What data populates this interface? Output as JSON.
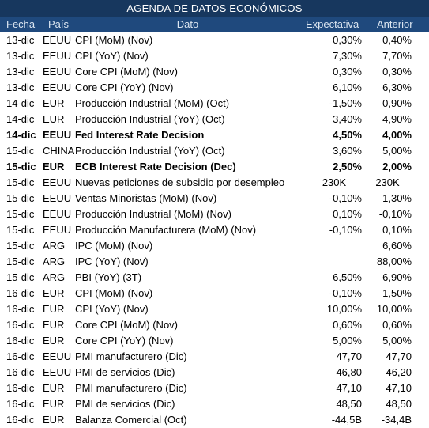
{
  "title": "AGENDA DE DATOS ECONÓMICOS",
  "columns": {
    "fecha": "Fecha",
    "pais": "País",
    "dato": "Dato",
    "expectativa": "Expectativa",
    "anterior": "Anterior"
  },
  "rows": [
    {
      "fecha": "13-dic",
      "pais": "EEUU",
      "dato": "CPI (MoM) (Nov)",
      "expectativa": "0,30%",
      "anterior": "0,40%",
      "bold": false
    },
    {
      "fecha": "13-dic",
      "pais": "EEUU",
      "dato": "CPI (YoY) (Nov)",
      "expectativa": "7,30%",
      "anterior": "7,70%",
      "bold": false
    },
    {
      "fecha": "13-dic",
      "pais": "EEUU",
      "dato": "Core CPI (MoM) (Nov)",
      "expectativa": "0,30%",
      "anterior": "0,30%",
      "bold": false
    },
    {
      "fecha": "13-dic",
      "pais": "EEUU",
      "dato": "Core CPI (YoY) (Nov)",
      "expectativa": "6,10%",
      "anterior": "6,30%",
      "bold": false
    },
    {
      "fecha": "14-dic",
      "pais": "EUR",
      "dato": "Producción Industrial (MoM) (Oct)",
      "expectativa": "-1,50%",
      "anterior": "0,90%",
      "bold": false
    },
    {
      "fecha": "14-dic",
      "pais": "EUR",
      "dato": "Producción Industrial (YoY) (Oct)",
      "expectativa": "3,40%",
      "anterior": "4,90%",
      "bold": false
    },
    {
      "fecha": "14-dic",
      "pais": "EEUU",
      "dato": "Fed Interest Rate Decision",
      "expectativa": "4,50%",
      "anterior": "4,00%",
      "bold": true
    },
    {
      "fecha": "15-dic",
      "pais": "CHINA",
      "dato": "Producción Industrial (YoY) (Oct)",
      "expectativa": "3,60%",
      "anterior": "5,00%",
      "bold": false
    },
    {
      "fecha": "15-dic",
      "pais": "EUR",
      "dato": "ECB Interest Rate Decision (Dec)",
      "expectativa": "2,50%",
      "anterior": "2,00%",
      "bold": true
    },
    {
      "fecha": "15-dic",
      "pais": "EEUU",
      "dato": "Nuevas peticiones de subsidio por desempleo",
      "expectativa": "230K",
      "anterior": "230K",
      "bold": false,
      "center": true
    },
    {
      "fecha": "15-dic",
      "pais": "EEUU",
      "dato": "Ventas Minoristas (MoM) (Nov)",
      "expectativa": "-0,10%",
      "anterior": "1,30%",
      "bold": false
    },
    {
      "fecha": "15-dic",
      "pais": "EEUU",
      "dato": "Producción Industrial (MoM) (Nov)",
      "expectativa": "0,10%",
      "anterior": "-0,10%",
      "bold": false
    },
    {
      "fecha": "15-dic",
      "pais": "EEUU",
      "dato": "Producción Manufacturera (MoM) (Nov)",
      "expectativa": "-0,10%",
      "anterior": "0,10%",
      "bold": false
    },
    {
      "fecha": "15-dic",
      "pais": "ARG",
      "dato": "IPC (MoM) (Nov)",
      "expectativa": "",
      "anterior": "6,60%",
      "bold": false
    },
    {
      "fecha": "15-dic",
      "pais": "ARG",
      "dato": "IPC (YoY) (Nov)",
      "expectativa": "",
      "anterior": "88,00%",
      "bold": false
    },
    {
      "fecha": "15-dic",
      "pais": "ARG",
      "dato": "PBI (YoY) (3T)",
      "expectativa": "6,50%",
      "anterior": "6,90%",
      "bold": false
    },
    {
      "fecha": "16-dic",
      "pais": "EUR",
      "dato": "CPI (MoM) (Nov)",
      "expectativa": "-0,10%",
      "anterior": "1,50%",
      "bold": false
    },
    {
      "fecha": "16-dic",
      "pais": "EUR",
      "dato": "CPI (YoY) (Nov)",
      "expectativa": "10,00%",
      "anterior": "10,00%",
      "bold": false
    },
    {
      "fecha": "16-dic",
      "pais": "EUR",
      "dato": "Core CPI (MoM) (Nov)",
      "expectativa": "0,60%",
      "anterior": "0,60%",
      "bold": false
    },
    {
      "fecha": "16-dic",
      "pais": "EUR",
      "dato": "Core CPI (YoY) (Nov)",
      "expectativa": "5,00%",
      "anterior": "5,00%",
      "bold": false
    },
    {
      "fecha": "16-dic",
      "pais": "EEUU",
      "dato": "PMI manufacturero (Dic)",
      "expectativa": "47,70",
      "anterior": "47,70",
      "bold": false
    },
    {
      "fecha": "16-dic",
      "pais": "EEUU",
      "dato": "PMI de servicios (Dic)",
      "expectativa": "46,80",
      "anterior": "46,20",
      "bold": false
    },
    {
      "fecha": "16-dic",
      "pais": "EUR",
      "dato": "PMI manufacturero (Dic)",
      "expectativa": "47,10",
      "anterior": "47,10",
      "bold": false
    },
    {
      "fecha": "16-dic",
      "pais": "EUR",
      "dato": "PMI de servicios (Dic)",
      "expectativa": "48,50",
      "anterior": "48,50",
      "bold": false
    },
    {
      "fecha": "16-dic",
      "pais": "EUR",
      "dato": "Balanza Comercial (Oct)",
      "expectativa": "-44,5B",
      "anterior": "-34,4B",
      "bold": false
    }
  ]
}
